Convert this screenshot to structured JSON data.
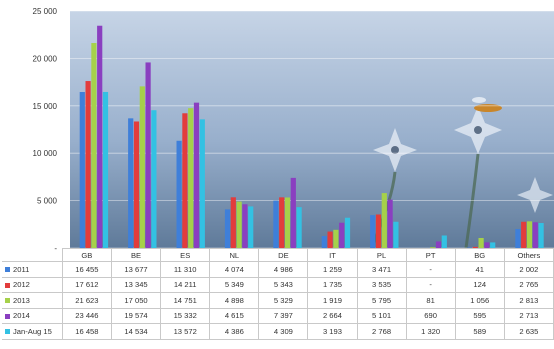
{
  "chart_data": {
    "type": "bar",
    "categories": [
      "GB",
      "BE",
      "ES",
      "NL",
      "DE",
      "IT",
      "PL",
      "PT",
      "BG",
      "Others"
    ],
    "y_ticks": [
      "25 000",
      "20 000",
      "15 000",
      "10 000",
      "5 000",
      "-"
    ],
    "ylim": [
      0,
      25000
    ],
    "grid": true,
    "legend": "table-below",
    "series": [
      {
        "name": "2011",
        "color": "#3f7fd9",
        "values": [
          16455,
          13677,
          11310,
          4074,
          4986,
          1259,
          3471,
          null,
          41,
          2002
        ],
        "labels": [
          "16 455",
          "13 677",
          "11 310",
          "4 074",
          "4 986",
          "1 259",
          "3 471",
          "-",
          "41",
          "2 002"
        ]
      },
      {
        "name": "2012",
        "color": "#e23c3c",
        "values": [
          17612,
          13345,
          14211,
          5349,
          5343,
          1735,
          3535,
          null,
          124,
          2765
        ],
        "labels": [
          "17 612",
          "13 345",
          "14 211",
          "5 349",
          "5 343",
          "1 735",
          "3 535",
          "-",
          "124",
          "2 765"
        ]
      },
      {
        "name": "2013",
        "color": "#a6d14a",
        "values": [
          21623,
          17050,
          14751,
          4898,
          5329,
          1919,
          5795,
          81,
          1056,
          2813
        ],
        "labels": [
          "21 623",
          "17 050",
          "14 751",
          "4 898",
          "5 329",
          "1 919",
          "5 795",
          "81",
          "1 056",
          "2 813"
        ]
      },
      {
        "name": "2014",
        "color": "#8a3fc0",
        "values": [
          23446,
          19574,
          15332,
          4615,
          7397,
          2664,
          5101,
          690,
          595,
          2713
        ],
        "labels": [
          "23 446",
          "19 574",
          "15 332",
          "4 615",
          "7 397",
          "2 664",
          "5 101",
          "690",
          "595",
          "2 713"
        ]
      },
      {
        "name": "Jan-Aug 15",
        "color": "#33c1e3",
        "values": [
          16458,
          14534,
          13572,
          4386,
          4309,
          3193,
          2768,
          1320,
          589,
          2635
        ],
        "labels": [
          "16 458",
          "14 534",
          "13 572",
          "4 386",
          "4 309",
          "3 193",
          "2 768",
          "1 320",
          "589",
          "2 635"
        ]
      }
    ]
  }
}
